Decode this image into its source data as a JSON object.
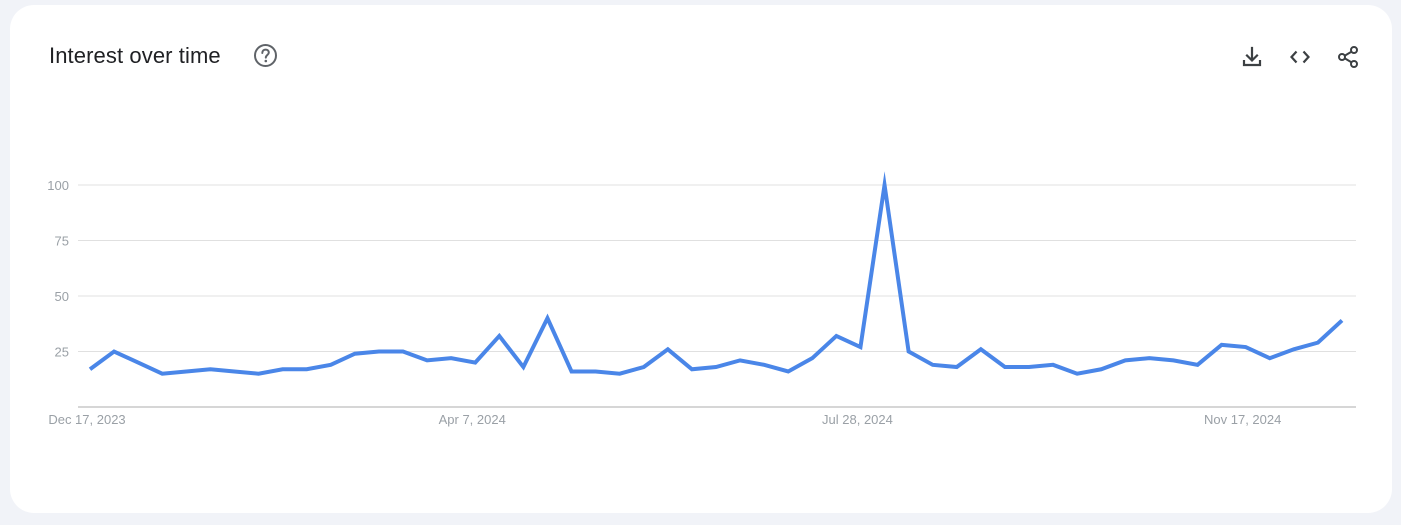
{
  "header": {
    "title": "Interest over time",
    "help_icon": "help-circle-icon",
    "actions": [
      {
        "name": "download-button",
        "icon": "download-icon"
      },
      {
        "name": "embed-button",
        "icon": "code-icon"
      },
      {
        "name": "share-button",
        "icon": "share-icon"
      }
    ]
  },
  "colors": {
    "line": "#4a86e8",
    "grid": "#e0e0e0",
    "axis": "#bdbdbd",
    "label": "#9aa0a6"
  },
  "chart_data": {
    "type": "line",
    "title": "",
    "xlabel": "",
    "ylabel": "",
    "ylim": [
      0,
      100
    ],
    "yticks": [
      25,
      50,
      75,
      100
    ],
    "grid": true,
    "x_tick_labels": [
      "Dec 17, 2023",
      "Apr 7, 2024",
      "Jul 28, 2024",
      "Nov 17, 2024"
    ],
    "x_tick_indices": [
      0,
      16,
      32,
      48
    ],
    "series": [
      {
        "values": [
          17,
          25,
          20,
          15,
          16,
          17,
          16,
          15,
          17,
          17,
          19,
          24,
          25,
          25,
          21,
          22,
          20,
          32,
          18,
          40,
          16,
          16,
          15,
          18,
          26,
          17,
          18,
          21,
          19,
          16,
          22,
          32,
          27,
          100,
          25,
          19,
          18,
          26,
          18,
          18,
          19,
          15,
          17,
          21,
          22,
          21,
          19,
          28,
          27,
          22,
          26,
          29,
          39
        ]
      }
    ]
  }
}
